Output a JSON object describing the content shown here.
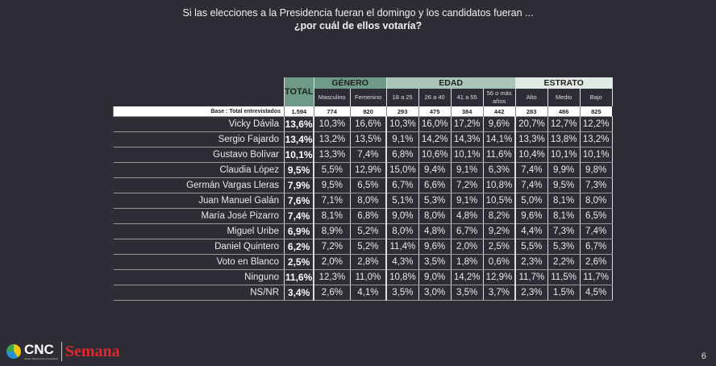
{
  "title": {
    "line1": "Si las elecciones a la Presidencia fueran el domingo y los  candidatos fueran ...",
    "line2": "¿por cuál de ellos votaría?"
  },
  "headers": {
    "total": "TOTAL",
    "genero": "GÉNERO",
    "edad": "EDAD",
    "estrato": "ESTRATO",
    "sub": [
      "Masculino",
      "Femenino",
      "18 a 25",
      "26 a 40",
      "41 a 55",
      "56 o más años",
      "Alto",
      "Medio",
      "Bajo"
    ]
  },
  "base": {
    "label": "Base : Total entrevistados",
    "values": [
      "1.594",
      "774",
      "820",
      "293",
      "475",
      "384",
      "442",
      "283",
      "486",
      "825"
    ]
  },
  "rows": [
    {
      "name": "Vicky Dávila",
      "values": [
        "13,6%",
        "10,3%",
        "16,6%",
        "10,3%",
        "16,0%",
        "17,2%",
        "9,6%",
        "20,7%",
        "12,7%",
        "12,2%"
      ]
    },
    {
      "name": "Sergio Fajardo",
      "values": [
        "13,4%",
        "13,2%",
        "13,5%",
        "9,1%",
        "14,2%",
        "14,3%",
        "14,1%",
        "13,3%",
        "13,8%",
        "13,2%"
      ]
    },
    {
      "name": "Gustavo Bolívar",
      "values": [
        "10,1%",
        "13,3%",
        "7,4%",
        "6,8%",
        "10,6%",
        "10,1%",
        "11,6%",
        "10,4%",
        "10,1%",
        "10,1%"
      ]
    },
    {
      "name": "Claudia López",
      "values": [
        "9,5%",
        "5,5%",
        "12,9%",
        "15,0%",
        "9,4%",
        "9,1%",
        "6,3%",
        "7,4%",
        "9,9%",
        "9,8%"
      ]
    },
    {
      "name": "Germán Vargas Lleras",
      "values": [
        "7,9%",
        "9,5%",
        "6,5%",
        "6,7%",
        "6,6%",
        "7,2%",
        "10,8%",
        "7,4%",
        "9,5%",
        "7,3%"
      ]
    },
    {
      "name": "Juan Manuel Galán",
      "values": [
        "7,6%",
        "7,1%",
        "8,0%",
        "5,1%",
        "5,3%",
        "9,1%",
        "10,5%",
        "5,0%",
        "8,1%",
        "8,0%"
      ]
    },
    {
      "name": "María José Pizarro",
      "values": [
        "7,4%",
        "8,1%",
        "6,8%",
        "9,0%",
        "8,0%",
        "4,8%",
        "8,2%",
        "9,6%",
        "8,1%",
        "6,5%"
      ]
    },
    {
      "name": "Miguel Uribe",
      "values": [
        "6,9%",
        "8,9%",
        "5,2%",
        "8,0%",
        "4,8%",
        "6,7%",
        "9,2%",
        "4,4%",
        "7,3%",
        "7,4%"
      ]
    },
    {
      "name": "Daniel Quintero",
      "values": [
        "6,2%",
        "7,2%",
        "5,2%",
        "11,4%",
        "9,6%",
        "2,0%",
        "2,5%",
        "5,5%",
        "5,3%",
        "6,7%"
      ]
    },
    {
      "name": "Voto en Blanco",
      "values": [
        "2,5%",
        "2,0%",
        "2,8%",
        "4,3%",
        "3,5%",
        "1,8%",
        "0,6%",
        "2,3%",
        "2,2%",
        "2,6%"
      ]
    },
    {
      "name": "Ninguno",
      "values": [
        "11,6%",
        "12,3%",
        "11,0%",
        "10,8%",
        "9,0%",
        "14,2%",
        "12,9%",
        "11,7%",
        "11,5%",
        "11,7%"
      ]
    },
    {
      "name": "NS/NR",
      "values": [
        "3,4%",
        "2,6%",
        "4,1%",
        "3,5%",
        "3,0%",
        "3,5%",
        "3,7%",
        "2,3%",
        "1,5%",
        "4,5%"
      ]
    }
  ],
  "footer": {
    "logo_cnc": "CNC",
    "logo_cnc_sub": "Centro Nacional de Consultoría",
    "logo_semana": "Semana",
    "page": "6"
  }
}
